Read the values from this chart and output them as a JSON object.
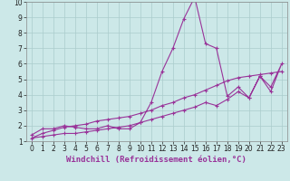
{
  "xlabel": "Windchill (Refroidissement éolien,°C)",
  "bg_color": "#cce8e8",
  "line_color": "#993399",
  "grid_color": "#aacccc",
  "xlim": [
    -0.5,
    23.5
  ],
  "ylim": [
    1,
    10
  ],
  "xticks": [
    0,
    1,
    2,
    3,
    4,
    5,
    6,
    7,
    8,
    9,
    10,
    11,
    12,
    13,
    14,
    15,
    16,
    17,
    18,
    19,
    20,
    21,
    22,
    23
  ],
  "yticks": [
    1,
    2,
    3,
    4,
    5,
    6,
    7,
    8,
    9,
    10
  ],
  "x_data": [
    0,
    1,
    2,
    3,
    4,
    5,
    6,
    7,
    8,
    9,
    10,
    11,
    12,
    13,
    14,
    15,
    15,
    16,
    17,
    18,
    19,
    20,
    21,
    22,
    23,
    22,
    21,
    20,
    19,
    18,
    17,
    16,
    15,
    14,
    13,
    12,
    11,
    10,
    9,
    8,
    7,
    6,
    5,
    4,
    3,
    2,
    1,
    0,
    1,
    2,
    3,
    4,
    5,
    6,
    7,
    8,
    9,
    10,
    11,
    12,
    13,
    14,
    15,
    16,
    17,
    18,
    19,
    20,
    21,
    22,
    23
  ],
  "y_data": [
    1.4,
    1.8,
    1.8,
    2.0,
    1.9,
    1.8,
    1.8,
    2.0,
    1.8,
    1.8,
    2.2,
    3.5,
    5.5,
    7.0,
    8.9,
    10.3,
    10.3,
    7.3,
    7.0,
    3.9,
    4.5,
    3.8,
    5.2,
    4.2,
    6.0,
    4.5,
    5.2,
    3.8,
    4.2,
    3.7,
    3.3,
    3.5,
    3.2,
    3.0,
    2.8,
    2.6,
    2.4,
    2.2,
    2.0,
    1.9,
    1.8,
    1.7,
    1.6,
    1.5,
    1.5,
    1.4,
    1.3,
    1.2,
    1.5,
    1.7,
    1.9,
    2.0,
    2.1,
    2.3,
    2.4,
    2.5,
    2.6,
    2.8,
    3.0,
    3.3,
    3.5,
    3.8,
    4.0,
    4.3,
    4.6,
    4.9,
    5.1,
    5.2,
    5.3,
    5.4,
    5.5
  ],
  "marker": "+",
  "markersize": 3,
  "linewidth": 0.8,
  "tick_fontsize": 5.5,
  "xlabel_fontsize": 6.5
}
